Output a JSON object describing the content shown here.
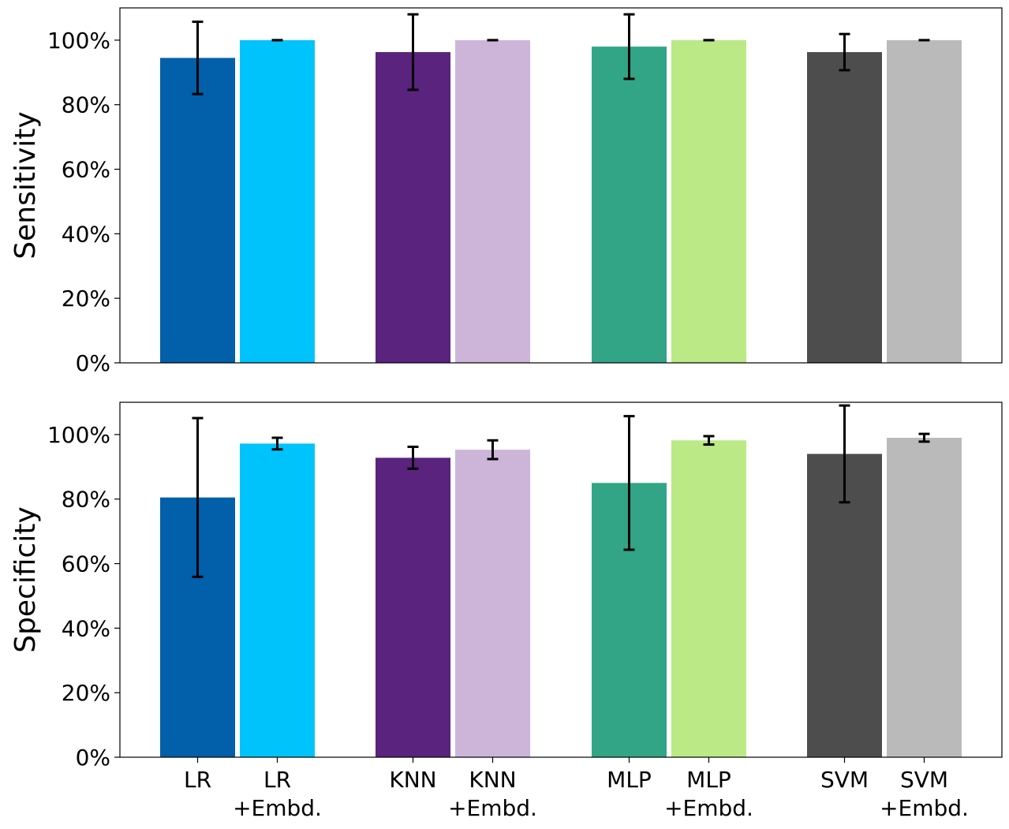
{
  "chart_data": {
    "type": "bar",
    "categories": [
      "LR",
      "LR\n+Embd.",
      "KNN",
      "KNN\n+Embd.",
      "MLP",
      "MLP\n+Embd.",
      "SVM",
      "SVM\n+Embd."
    ],
    "category_lines": [
      [
        "LR"
      ],
      [
        "LR",
        "+Embd."
      ],
      [
        "KNN"
      ],
      [
        "KNN",
        "+Embd."
      ],
      [
        "MLP"
      ],
      [
        "MLP",
        "+Embd."
      ],
      [
        "SVM"
      ],
      [
        "SVM",
        "+Embd."
      ]
    ],
    "colors": [
      "#025FA9",
      "#00C3FC",
      "#5A237D",
      "#CDB5DA",
      "#32A586",
      "#BAE986",
      "#4D4D4D",
      "#BABABA"
    ],
    "yticks": [
      "0%",
      "20%",
      "40%",
      "60%",
      "80%",
      "100%"
    ],
    "ylim": [
      0,
      110
    ],
    "panels": [
      {
        "ylabel": "Sensitivity",
        "values": [
          94.5,
          100,
          96.3,
          100,
          98,
          100,
          96.3,
          100
        ],
        "errors": [
          11.2,
          0,
          11.7,
          0,
          10,
          0,
          5.6,
          0
        ]
      },
      {
        "ylabel": "Specificity",
        "values": [
          80.5,
          97.2,
          92.8,
          95.3,
          85,
          98.2,
          94,
          99
        ],
        "errors": [
          24.6,
          1.8,
          3.4,
          2.9,
          20.7,
          1.3,
          15,
          1.2
        ]
      }
    ]
  }
}
